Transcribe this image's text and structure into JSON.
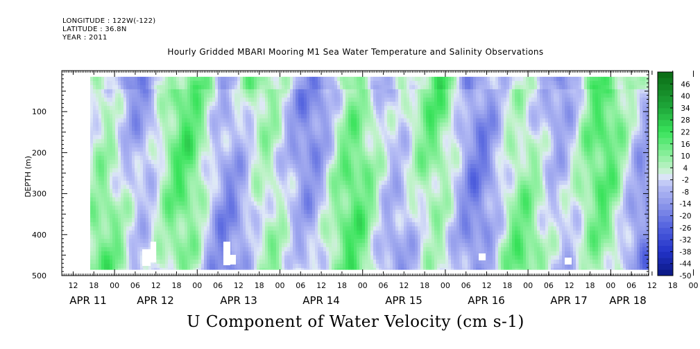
{
  "header": {
    "longitude": "LONGITUDE : 122W(-122)",
    "latitude": "LATITUDE : 36.8N",
    "year": "YEAR : 2011",
    "title": "Hourly Gridded MBARI Mooring M1 Sea Water Temperature and Salinity Observations"
  },
  "chart_data": {
    "type": "heatmap",
    "title": "Hourly Gridded MBARI Mooring M1 Sea Water Temperature and Salinity Observations",
    "xlabel": "",
    "ylabel": "DEPTH (m)",
    "bottom_label": "U Component of Water Velocity (cm s-1)",
    "ylim": [
      500,
      0
    ],
    "y_ticks": [
      "100",
      "200",
      "300",
      "400",
      "500"
    ],
    "x_hour_ticks": [
      "12",
      "18",
      "00",
      "06",
      "12",
      "18",
      "00",
      "06",
      "12",
      "18",
      "00",
      "06",
      "12",
      "18",
      "00",
      "06",
      "12",
      "18",
      "00",
      "06",
      "12",
      "18",
      "00",
      "06",
      "12",
      "18",
      "00",
      "06",
      "12",
      "18",
      "00",
      "06"
    ],
    "x_date_labels": [
      "APR 11",
      "APR 12",
      "APR 13",
      "APR 14",
      "APR 15",
      "APR 16",
      "APR 17",
      "APR 18"
    ],
    "data_depth_range": [
      15,
      485
    ],
    "colorbar": {
      "levels": [
        "46",
        "40",
        "34",
        "28",
        "22",
        "16",
        "10",
        "4",
        "-2",
        "-8",
        "-14",
        "-20",
        "-26",
        "-32",
        "-38",
        "-44",
        "-50"
      ],
      "range": [
        -50,
        52
      ],
      "step": 3
    },
    "colors": {
      "strong_positive": "#0a6a14",
      "positive": "#39e35b",
      "weak_positive": "#a9f0b5",
      "zero": "#e8f4ee",
      "weak_negative": "#b6bdf5",
      "negative": "#8e98ea",
      "strong_negative": "#0a1780"
    }
  }
}
